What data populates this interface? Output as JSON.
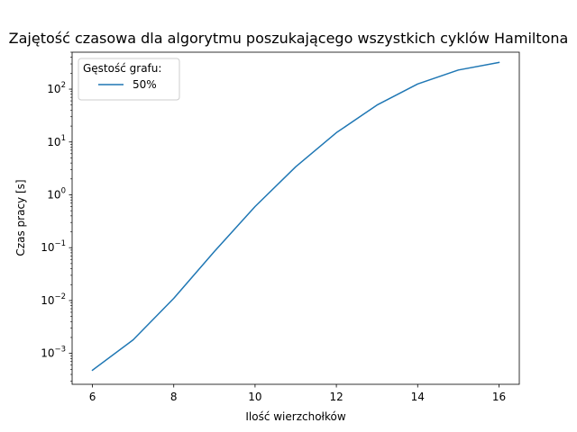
{
  "chart_data": {
    "type": "line",
    "title": "Zajętość czasowa dla algorytmu poszukającego wszystkich cyklów Hamiltona",
    "xlabel": "Ilość wierzchołków",
    "ylabel": "Czas pracy [s]",
    "yscale": "log",
    "xlim": [
      5.5,
      16.5
    ],
    "ylim": [
      0.00026,
      500
    ],
    "x_ticks": [
      6,
      8,
      10,
      12,
      14,
      16
    ],
    "y_ticks": [
      {
        "value": 0.001,
        "mantissa": "10",
        "exp": "−3"
      },
      {
        "value": 0.01,
        "mantissa": "10",
        "exp": "−2"
      },
      {
        "value": 0.1,
        "mantissa": "10",
        "exp": "−1"
      },
      {
        "value": 1,
        "mantissa": "10",
        "exp": "0"
      },
      {
        "value": 10,
        "mantissa": "10",
        "exp": "1"
      },
      {
        "value": 100,
        "mantissa": "10",
        "exp": "2"
      }
    ],
    "grid": false,
    "legend": {
      "title": "Gęstość grafu:",
      "placement": "upper-left"
    },
    "series": [
      {
        "name": "50%",
        "color": "#1f77b4",
        "x": [
          6,
          7,
          8,
          9,
          10,
          11,
          12,
          13,
          14,
          15,
          16
        ],
        "y": [
          0.00048,
          0.0018,
          0.011,
          0.085,
          0.6,
          3.4,
          15,
          50,
          125,
          230,
          320
        ]
      }
    ]
  }
}
